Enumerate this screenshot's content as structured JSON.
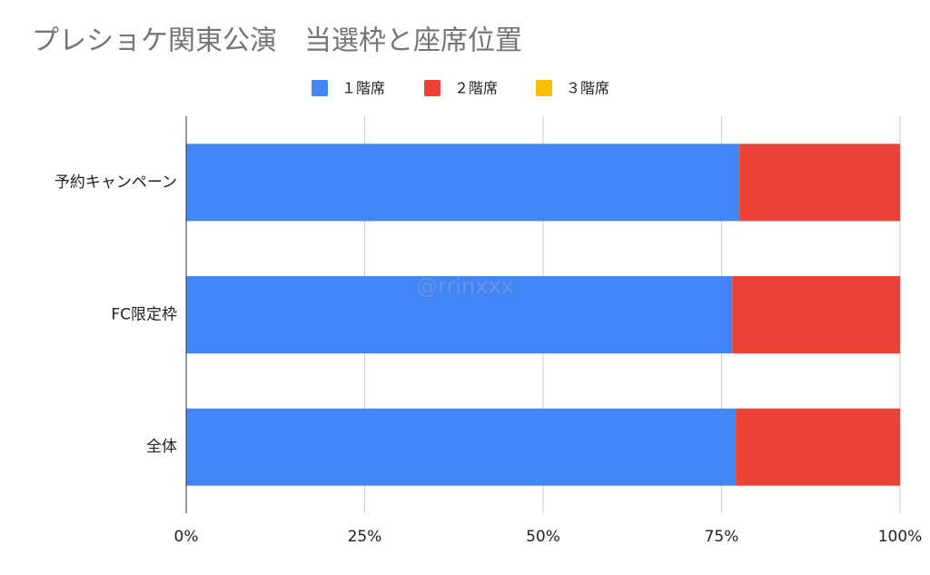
{
  "chart_data": {
    "type": "stacked_bar_horizontal",
    "title": "プレショケ関東公演　当選枠と座席位置",
    "watermark": "@rrinxxx",
    "categories": [
      "予約キャンペーン",
      "FC限定枠",
      "全体"
    ],
    "series": [
      {
        "name": "１階席",
        "color": "#4285f4",
        "values": [
          77.5,
          76.5,
          77
        ]
      },
      {
        "name": "２階席",
        "color": "#ea4335",
        "values": [
          22.5,
          23.5,
          23
        ]
      },
      {
        "name": "３階席",
        "color": "#fbbc04",
        "values": [
          0,
          0,
          0
        ]
      }
    ],
    "xlim": [
      0,
      100
    ],
    "xticks": [
      {
        "value": 0,
        "label": "0%"
      },
      {
        "value": 25,
        "label": "25%"
      },
      {
        "value": 50,
        "label": "50%"
      },
      {
        "value": 75,
        "label": "75%"
      },
      {
        "value": 100,
        "label": "100%"
      }
    ],
    "grid": true,
    "legend": "top"
  }
}
